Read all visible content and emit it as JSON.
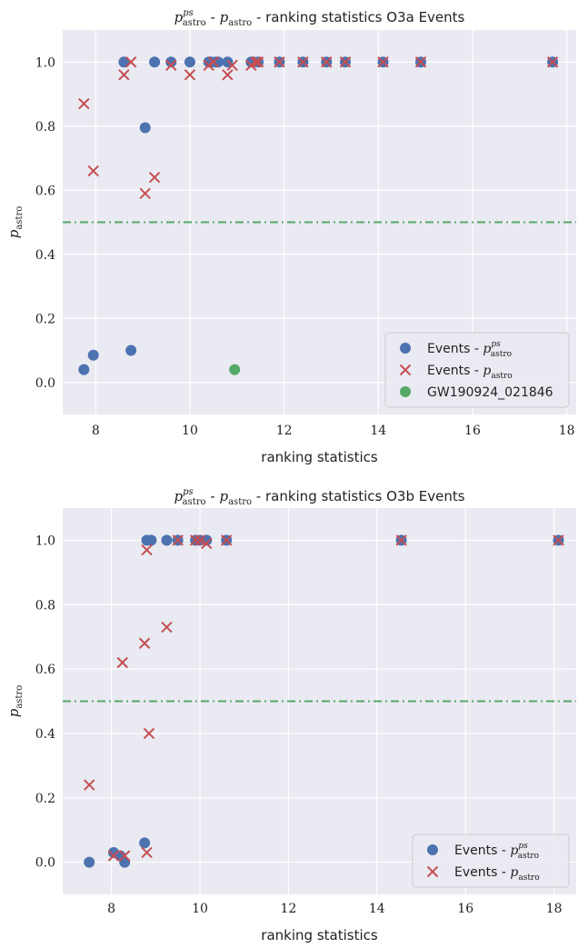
{
  "chart_data": [
    {
      "type": "scatter",
      "title_parts": {
        "a": "p",
        "a_sup": "ps",
        "a_sub": "astro",
        "sep": " - ",
        "b": "p",
        "b_sub": "astro",
        "rest": " - ranking statistics O3a Events"
      },
      "xlabel": "ranking statistics",
      "ylabel": {
        "main": "p",
        "sub": "astro"
      },
      "xlim": [
        7.3,
        18.2
      ],
      "ylim": [
        -0.1,
        1.1
      ],
      "xticks": [
        "8",
        "10",
        "12",
        "14",
        "16",
        "18"
      ],
      "xtick_values": [
        8,
        10,
        12,
        14,
        16,
        18
      ],
      "yticks": [
        "0.0",
        "0.2",
        "0.4",
        "0.6",
        "0.8",
        "1.0"
      ],
      "ytick_values": [
        0.0,
        0.2,
        0.4,
        0.6,
        0.8,
        1.0
      ],
      "threshold": 0.5,
      "colors": {
        "ps": "#4c72b0",
        "pastro": "#c44e52",
        "special": "#55a868",
        "threshold": "#55a868",
        "bg": "#eaeaf2",
        "grid": "#ffffff"
      },
      "legend_placement": "lower-right",
      "legend": [
        {
          "marker": "circle",
          "color": "#4c72b0",
          "text": "Events - ",
          "math": "p",
          "sup": "ps",
          "sub": "astro"
        },
        {
          "marker": "x",
          "color": "#c44e52",
          "text": "Events - ",
          "math": "p",
          "sup": "",
          "sub": "astro"
        },
        {
          "marker": "circle",
          "color": "#55a868",
          "text": "GW190924_021846",
          "math": "",
          "sup": "",
          "sub": ""
        }
      ],
      "series": [
        {
          "name": "ps",
          "marker": "circle",
          "x": [
            7.75,
            7.95,
            8.75,
            8.6,
            9.05,
            9.25,
            9.6,
            10.0,
            10.4,
            10.45,
            10.55,
            10.6,
            10.8,
            11.3,
            11.35,
            11.45,
            11.9,
            12.4,
            12.9,
            13.3,
            14.1,
            14.9,
            17.7
          ],
          "y": [
            0.04,
            0.085,
            0.1,
            1.0,
            0.795,
            1.0,
            1.0,
            1.0,
            1.0,
            1.0,
            1.0,
            1.0,
            1.0,
            1.0,
            1.0,
            1.0,
            1.0,
            1.0,
            1.0,
            1.0,
            1.0,
            1.0,
            1.0
          ]
        },
        {
          "name": "pastro",
          "marker": "x",
          "x": [
            7.75,
            7.95,
            8.6,
            8.75,
            9.05,
            9.25,
            9.6,
            10.0,
            10.4,
            10.5,
            10.8,
            10.9,
            11.3,
            11.4,
            11.45,
            11.9,
            12.4,
            12.9,
            13.3,
            14.1,
            14.9,
            17.7
          ],
          "y": [
            0.87,
            0.66,
            0.96,
            1.0,
            0.59,
            0.64,
            0.99,
            0.96,
            0.99,
            1.0,
            0.96,
            0.99,
            0.99,
            1.0,
            1.0,
            1.0,
            1.0,
            1.0,
            1.0,
            1.0,
            1.0,
            1.0
          ]
        },
        {
          "name": "special",
          "marker": "circle",
          "x": [
            10.95
          ],
          "y": [
            0.04
          ]
        }
      ]
    },
    {
      "type": "scatter",
      "title_parts": {
        "a": "p",
        "a_sup": "ps",
        "a_sub": "astro",
        "sep": " - ",
        "b": "p",
        "b_sub": "astro",
        "rest": " - ranking statistics O3b Events"
      },
      "xlabel": "ranking statistics",
      "ylabel": {
        "main": "p",
        "sub": "astro"
      },
      "xlim": [
        6.9,
        18.5
      ],
      "ylim": [
        -0.1,
        1.1
      ],
      "xticks": [
        "8",
        "10",
        "12",
        "14",
        "16",
        "18"
      ],
      "xtick_values": [
        8,
        10,
        12,
        14,
        16,
        18
      ],
      "yticks": [
        "0.0",
        "0.2",
        "0.4",
        "0.6",
        "0.8",
        "1.0"
      ],
      "ytick_values": [
        0.0,
        0.2,
        0.4,
        0.6,
        0.8,
        1.0
      ],
      "threshold": 0.5,
      "colors": {
        "ps": "#4c72b0",
        "pastro": "#c44e52",
        "threshold": "#55a868",
        "bg": "#eaeaf2",
        "grid": "#ffffff"
      },
      "legend_placement": "lower-right",
      "legend": [
        {
          "marker": "circle",
          "color": "#4c72b0",
          "text": "Events - ",
          "math": "p",
          "sup": "ps",
          "sub": "astro"
        },
        {
          "marker": "x",
          "color": "#c44e52",
          "text": "Events - ",
          "math": "p",
          "sup": "",
          "sub": "astro"
        }
      ],
      "series": [
        {
          "name": "ps",
          "marker": "circle",
          "x": [
            7.5,
            8.05,
            8.2,
            8.3,
            8.75,
            8.8,
            8.9,
            9.25,
            9.5,
            9.9,
            10.0,
            10.15,
            10.6,
            14.55,
            18.1
          ],
          "y": [
            0.0,
            0.03,
            0.02,
            0.0,
            0.06,
            1.0,
            1.0,
            1.0,
            1.0,
            1.0,
            1.0,
            1.0,
            1.0,
            1.0,
            1.0
          ],
          "__unused": null
        },
        {
          "name": "pastro",
          "marker": "x",
          "x": [
            7.5,
            8.05,
            8.25,
            8.3,
            8.75,
            8.8,
            8.85,
            8.8,
            9.25,
            9.5,
            9.9,
            10.0,
            10.15,
            10.6,
            14.55,
            18.1
          ],
          "y": [
            0.24,
            0.02,
            0.62,
            0.02,
            0.68,
            0.97,
            0.4,
            0.03,
            0.73,
            1.0,
            1.0,
            1.0,
            0.99,
            1.0,
            1.0,
            1.0
          ]
        }
      ]
    }
  ]
}
